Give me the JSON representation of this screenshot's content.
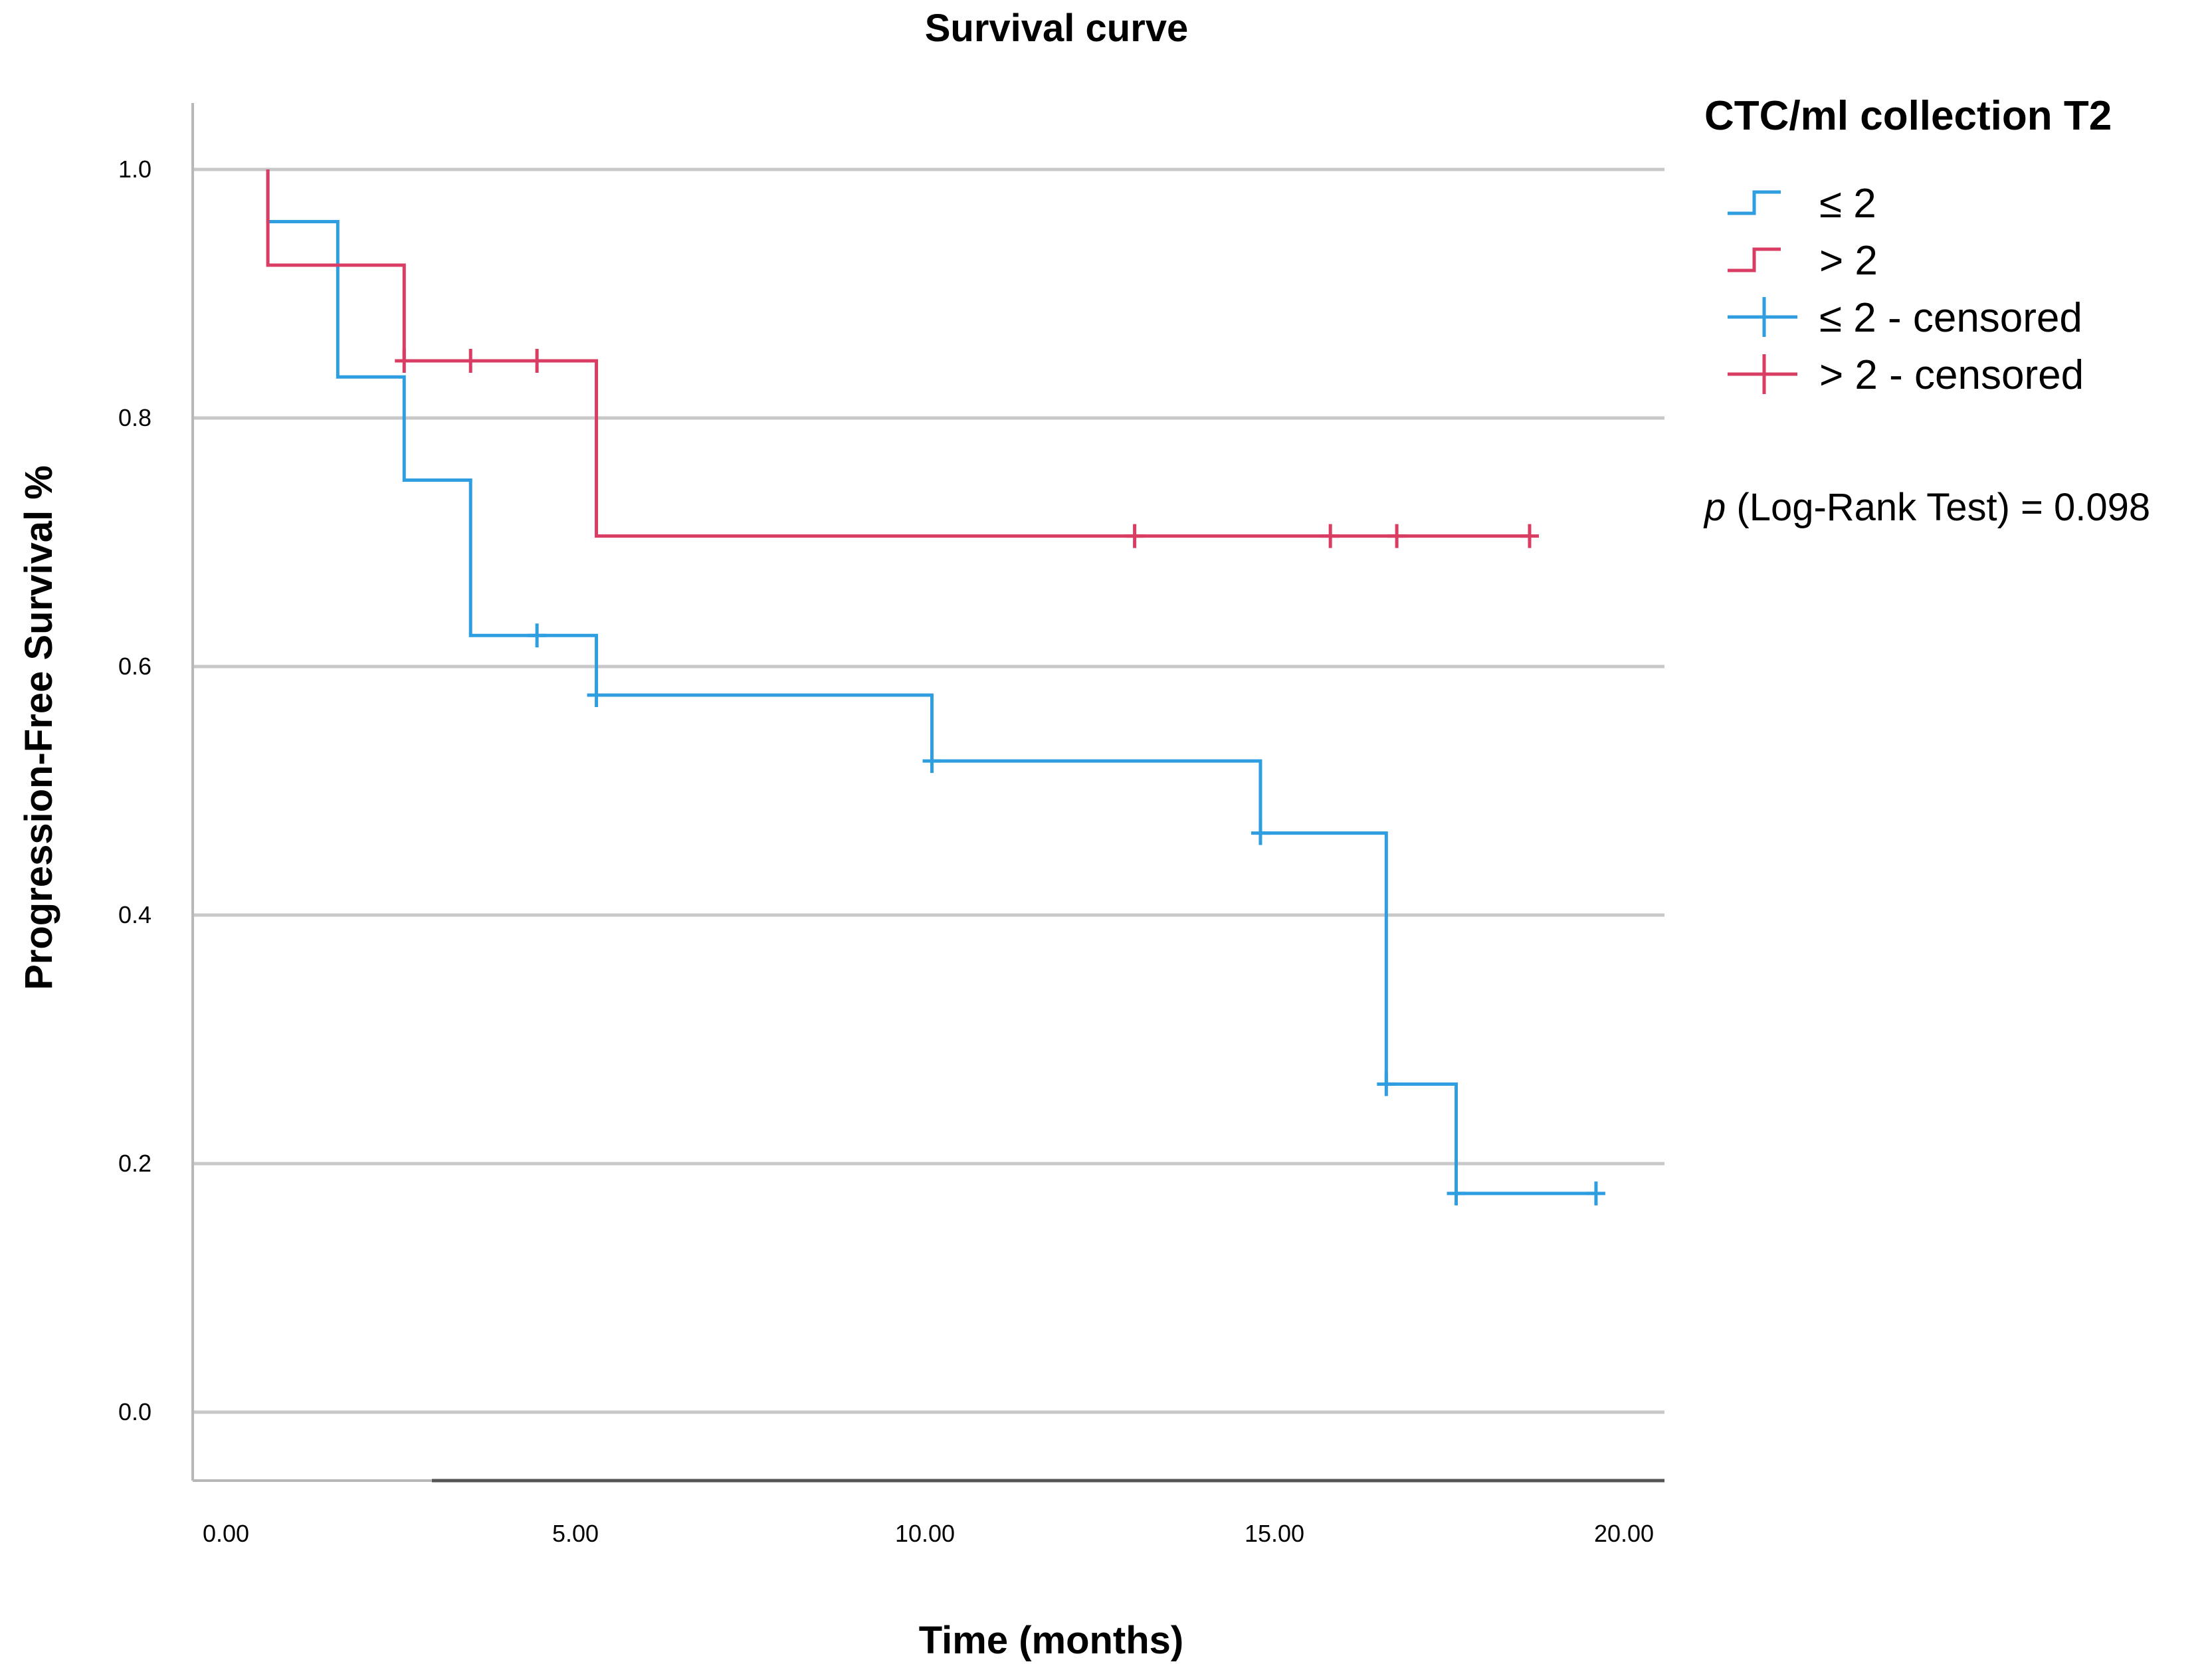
{
  "chart_data": {
    "type": "line",
    "subtype": "kaplan-meier step",
    "title": "Survival curve",
    "xlabel": "Time (months)",
    "ylabel": "Progression-Free Survival %",
    "xlim": [
      -0.4,
      20.5
    ],
    "ylim": [
      -0.05,
      1.05
    ],
    "xticks": [
      0,
      5,
      10,
      15,
      20
    ],
    "xtick_labels": [
      "0.00",
      "5.00",
      "10.00",
      "15.00",
      "20.00"
    ],
    "yticks": [
      0.0,
      0.2,
      0.4,
      0.6,
      0.8,
      1.0
    ],
    "ytick_labels": [
      "0.0",
      "0.2",
      "0.4",
      "0.6",
      "0.8",
      "1.0"
    ],
    "grid": "horizontal",
    "legend_title": "CTC/ml collection T2",
    "legend_position": "right",
    "series": [
      {
        "name": "≤ 2",
        "color": "#2f9ee0",
        "steps": [
          [
            0.6,
            1.0
          ],
          [
            0.6,
            0.958
          ],
          [
            1.6,
            0.958
          ],
          [
            1.6,
            0.833
          ],
          [
            2.55,
            0.833
          ],
          [
            2.55,
            0.75
          ],
          [
            3.5,
            0.75
          ],
          [
            3.5,
            0.625
          ],
          [
            5.3,
            0.625
          ],
          [
            5.3,
            0.577
          ],
          [
            10.1,
            0.577
          ],
          [
            10.1,
            0.524
          ],
          [
            14.8,
            0.524
          ],
          [
            14.8,
            0.466
          ],
          [
            16.6,
            0.466
          ],
          [
            16.6,
            0.264
          ],
          [
            17.6,
            0.264
          ],
          [
            17.6,
            0.176
          ],
          [
            19.6,
            0.176
          ]
        ],
        "censored": [
          [
            4.45,
            0.625
          ],
          [
            5.3,
            0.577
          ],
          [
            10.1,
            0.524
          ],
          [
            14.8,
            0.466
          ],
          [
            16.6,
            0.264
          ],
          [
            17.6,
            0.176
          ],
          [
            19.6,
            0.176
          ]
        ]
      },
      {
        "name": "> 2",
        "color": "#d93d63",
        "steps": [
          [
            0.6,
            1.0
          ],
          [
            0.6,
            0.923
          ],
          [
            2.55,
            0.923
          ],
          [
            2.55,
            0.846
          ],
          [
            5.3,
            0.846
          ],
          [
            5.3,
            0.705
          ],
          [
            18.65,
            0.705
          ]
        ],
        "censored": [
          [
            2.55,
            0.846
          ],
          [
            3.5,
            0.846
          ],
          [
            4.45,
            0.846
          ],
          [
            13.0,
            0.705
          ],
          [
            15.8,
            0.705
          ],
          [
            16.75,
            0.705
          ],
          [
            18.65,
            0.705
          ]
        ]
      }
    ],
    "legend": [
      {
        "label": "≤ 2",
        "kind": "line",
        "color": "#2f9ee0"
      },
      {
        "label": "> 2",
        "kind": "line",
        "color": "#d93d63"
      },
      {
        "label": "≤ 2 - censored",
        "kind": "censor",
        "color": "#2f9ee0"
      },
      {
        "label": "> 2 - censored",
        "kind": "censor",
        "color": "#d93d63"
      }
    ],
    "annotation": {
      "p_symbol": "p",
      "text": " (Log-Rank Test) = 0.098"
    }
  }
}
